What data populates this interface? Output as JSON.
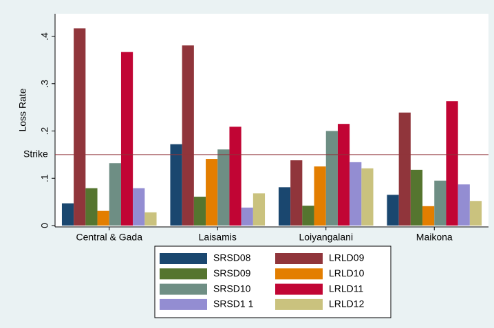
{
  "chart_data": {
    "type": "bar",
    "y_label": "Loss Rate",
    "categories": [
      "Central & Gada",
      "Laisamis",
      "Loiyangalani",
      "Maikona"
    ],
    "series": [
      {
        "name": "SRSD08",
        "color": "#1a476f",
        "values": [
          0.047,
          0.172,
          0.081,
          0.065
        ]
      },
      {
        "name": "LRLD09",
        "color": "#90353b",
        "values": [
          0.417,
          0.381,
          0.138,
          0.239
        ]
      },
      {
        "name": "SRSD09",
        "color": "#55752f",
        "values": [
          0.079,
          0.061,
          0.042,
          0.118
        ]
      },
      {
        "name": "LRLD10",
        "color": "#e37e00",
        "values": [
          0.031,
          0.141,
          0.125,
          0.041
        ]
      },
      {
        "name": "SRSD10",
        "color": "#6e8e84",
        "values": [
          0.132,
          0.161,
          0.2,
          0.095
        ]
      },
      {
        "name": "LRLD11",
        "color": "#c10534",
        "values": [
          0.367,
          0.209,
          0.215,
          0.263
        ]
      },
      {
        "name": "SRSD1 1",
        "color": "#938dd2",
        "values": [
          0.079,
          0.038,
          0.134,
          0.087
        ]
      },
      {
        "name": "LRLD12",
        "color": "#cac27e",
        "values": [
          0.028,
          0.068,
          0.121,
          0.052
        ]
      }
    ],
    "ylim": [
      0,
      0.44
    ],
    "yticks": [
      0,
      {
        "value": 0.1,
        "label": ".1"
      },
      {
        "value": 0.2,
        "label": ".2"
      },
      {
        "value": 0.3,
        "label": ".3"
      },
      {
        "value": 0.4,
        "label": ".4"
      }
    ],
    "reference_line": {
      "value": 0.15,
      "label": "Strike",
      "color": "#90353b"
    },
    "grid": false,
    "legend_position": "bottom"
  }
}
